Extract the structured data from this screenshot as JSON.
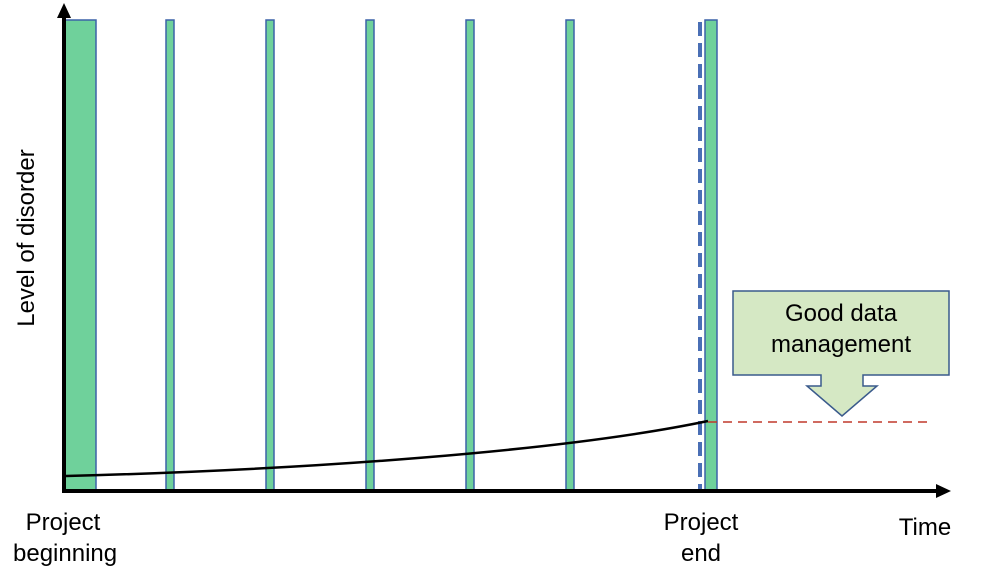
{
  "labels": {
    "y_axis": "Level of disorder",
    "x_axis": "Time",
    "start_line1": "Project",
    "start_line2": "beginning",
    "end_line1": "Project",
    "end_line2": "end"
  },
  "callout": {
    "line1": "Good data",
    "line2": "management"
  },
  "colors": {
    "bar_fill": "#6fd19b",
    "bar_stroke": "#3b62a8",
    "axis": "#000000",
    "curve": "#000000",
    "end_marker": "#4a6fb5",
    "threshold": "#c0392b",
    "callout_fill": "#d5e8c4",
    "callout_stroke": "#3a5a8c"
  }
}
